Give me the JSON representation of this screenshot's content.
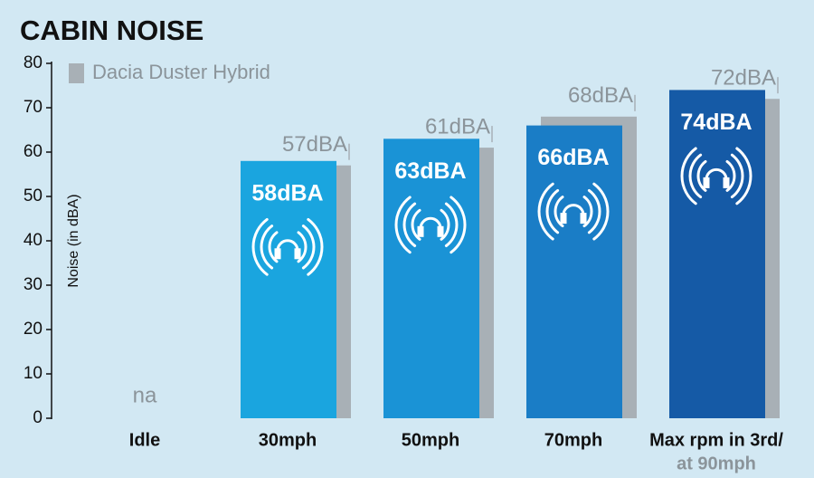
{
  "chart_data": {
    "type": "bar",
    "title": "CABIN NOISE",
    "y_label": "Noise (in dBA)",
    "categories": [
      "Idle",
      "30mph",
      "50mph",
      "70mph",
      "Max rpm in 3rd/"
    ],
    "annotations": [
      {
        "text": "at 90mph",
        "category": 4
      }
    ],
    "series": [
      {
        "colors": [
          "#1aa5df",
          "#1aa5df",
          "#1a93d6",
          "#1a7dc6",
          "#155aa6"
        ],
        "values": [
          null,
          58,
          63,
          66,
          74
        ],
        "value_labels": [
          "na",
          "58dBA",
          "63dBA",
          "66dBA",
          "74dBA"
        ]
      },
      {
        "name": "Dacia Duster Hybrid",
        "color": "#a8b0b6",
        "values": [
          null,
          57,
          61,
          68,
          72
        ],
        "value_labels": [
          null,
          "57dBA",
          "61dBA",
          "68dBA",
          "72dBA"
        ]
      }
    ],
    "ylim": [
      0,
      80
    ],
    "yticks": [
      0,
      10,
      20,
      30,
      40,
      50,
      60,
      70,
      80
    ]
  }
}
